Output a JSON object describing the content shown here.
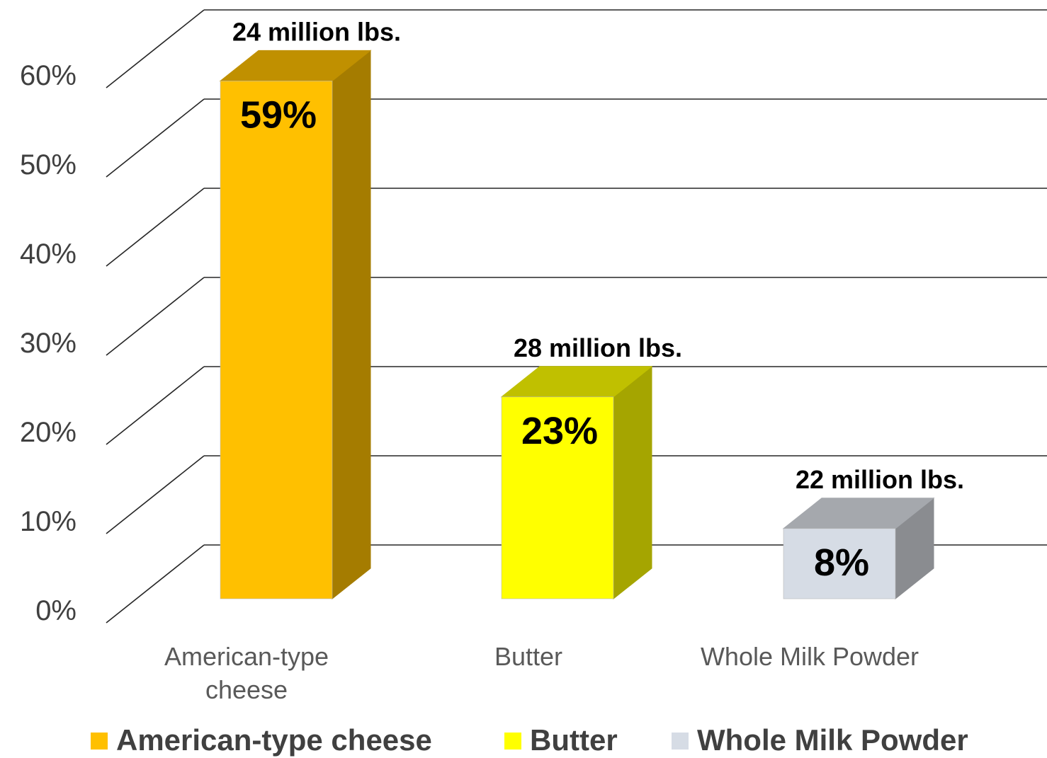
{
  "chart_data": {
    "type": "bar",
    "categories": [
      "American-type cheese",
      "Butter",
      "Whole Milk Powder"
    ],
    "category_labels": [
      [
        "American-type",
        "cheese"
      ],
      [
        "Butter"
      ],
      [
        "Whole Milk Powder"
      ]
    ],
    "values": [
      59,
      23,
      8
    ],
    "value_labels": [
      "59%",
      "23%",
      "8%"
    ],
    "volume_labels": [
      "24 million lbs.",
      "28 million lbs.",
      "22 million lbs."
    ],
    "ylim": [
      0,
      60
    ],
    "yticks": [
      0,
      10,
      20,
      30,
      40,
      50,
      60
    ],
    "ytick_labels": [
      "0%",
      "10%",
      "20%",
      "30%",
      "40%",
      "50%",
      "60%"
    ],
    "grid": true,
    "three_d": true,
    "legend_position": "bottom",
    "legend": [
      "American-type cheese",
      "Butter",
      "Whole Milk Powder"
    ],
    "colors": {
      "front": [
        "#ffc000",
        "#ffff00",
        "#d6dce5"
      ],
      "top": [
        "#c09000",
        "#c0c000",
        "#a5a8ad"
      ],
      "side": [
        "#a57c00",
        "#a5a500",
        "#8a8c90"
      ],
      "grid": "#262626"
    }
  }
}
